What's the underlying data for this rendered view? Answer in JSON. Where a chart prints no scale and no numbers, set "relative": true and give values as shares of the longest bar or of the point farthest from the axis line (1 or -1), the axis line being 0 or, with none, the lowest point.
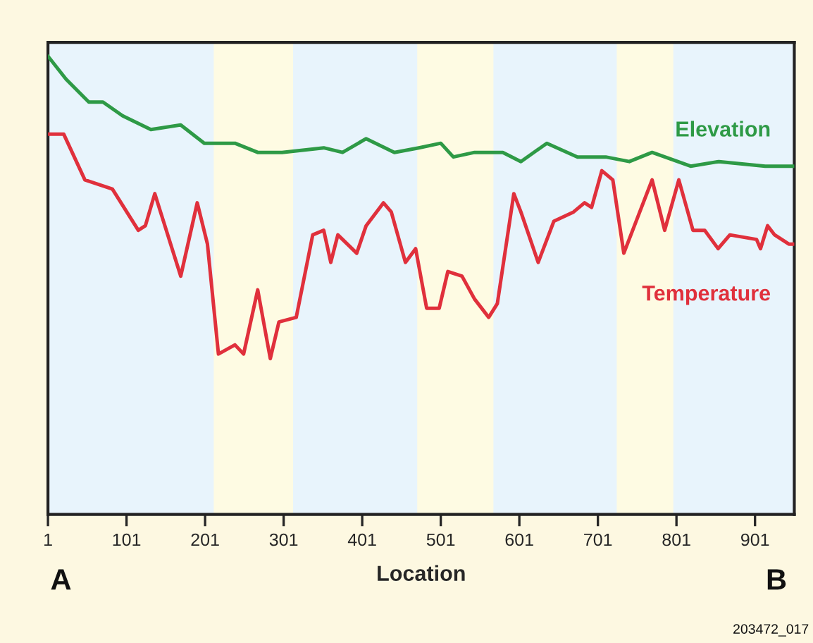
{
  "chart_data": {
    "type": "line",
    "xlabel": "Location",
    "relative": true,
    "xlim": [
      1,
      951
    ],
    "xticks": [
      1,
      101,
      201,
      301,
      401,
      501,
      601,
      701,
      801,
      901
    ],
    "grid": false,
    "tick_labels": "x",
    "annotations": [
      "A",
      "B",
      "203472_017"
    ],
    "bands": [
      {
        "axis": "x",
        "from": 212,
        "to": 313,
        "color": "#fefbe3"
      },
      {
        "axis": "x",
        "from": 471,
        "to": 568,
        "color": "#fefbe3"
      },
      {
        "axis": "x",
        "from": 725,
        "to": 797,
        "color": "#fefbe3"
      }
    ],
    "series": [
      {
        "name": "Elevation",
        "color": "#2e9a46",
        "x": [
          1,
          24,
          53,
          71,
          96,
          132,
          170,
          200,
          239,
          268,
          299,
          352,
          376,
          406,
          442,
          473,
          501,
          517,
          544,
          580,
          603,
          636,
          675,
          711,
          741,
          770,
          819,
          855,
          914,
          944,
          951
        ],
        "values": [
          1.0,
          0.95,
          0.9,
          0.9,
          0.87,
          0.84,
          0.85,
          0.81,
          0.81,
          0.79,
          0.79,
          0.8,
          0.79,
          0.82,
          0.79,
          0.8,
          0.81,
          0.78,
          0.79,
          0.79,
          0.77,
          0.81,
          0.78,
          0.78,
          0.77,
          0.79,
          0.76,
          0.77,
          0.76,
          0.76,
          0.76
        ]
      },
      {
        "name": "Temperature",
        "color": "#e0303c",
        "x": [
          1,
          21,
          48,
          83,
          116,
          125,
          137,
          159,
          170,
          191,
          204,
          218,
          239,
          250,
          268,
          284,
          295,
          317,
          338,
          352,
          361,
          370,
          394,
          406,
          428,
          438,
          456,
          469,
          483,
          499,
          510,
          528,
          544,
          562,
          573,
          594,
          603,
          625,
          645,
          670,
          684,
          693,
          706,
          720,
          734,
          752,
          770,
          786,
          804,
          822,
          837,
          854,
          869,
          903,
          908,
          917,
          926,
          944,
          951
        ],
        "values": [
          0.83,
          0.83,
          0.73,
          0.71,
          0.62,
          0.63,
          0.7,
          0.58,
          0.52,
          0.68,
          0.59,
          0.35,
          0.37,
          0.35,
          0.49,
          0.34,
          0.42,
          0.43,
          0.61,
          0.62,
          0.55,
          0.61,
          0.57,
          0.63,
          0.68,
          0.66,
          0.55,
          0.58,
          0.45,
          0.45,
          0.53,
          0.52,
          0.47,
          0.43,
          0.46,
          0.7,
          0.66,
          0.55,
          0.64,
          0.66,
          0.68,
          0.67,
          0.75,
          0.73,
          0.57,
          0.65,
          0.73,
          0.62,
          0.73,
          0.62,
          0.62,
          0.58,
          0.61,
          0.6,
          0.58,
          0.63,
          0.61,
          0.59,
          0.59
        ]
      }
    ]
  }
}
